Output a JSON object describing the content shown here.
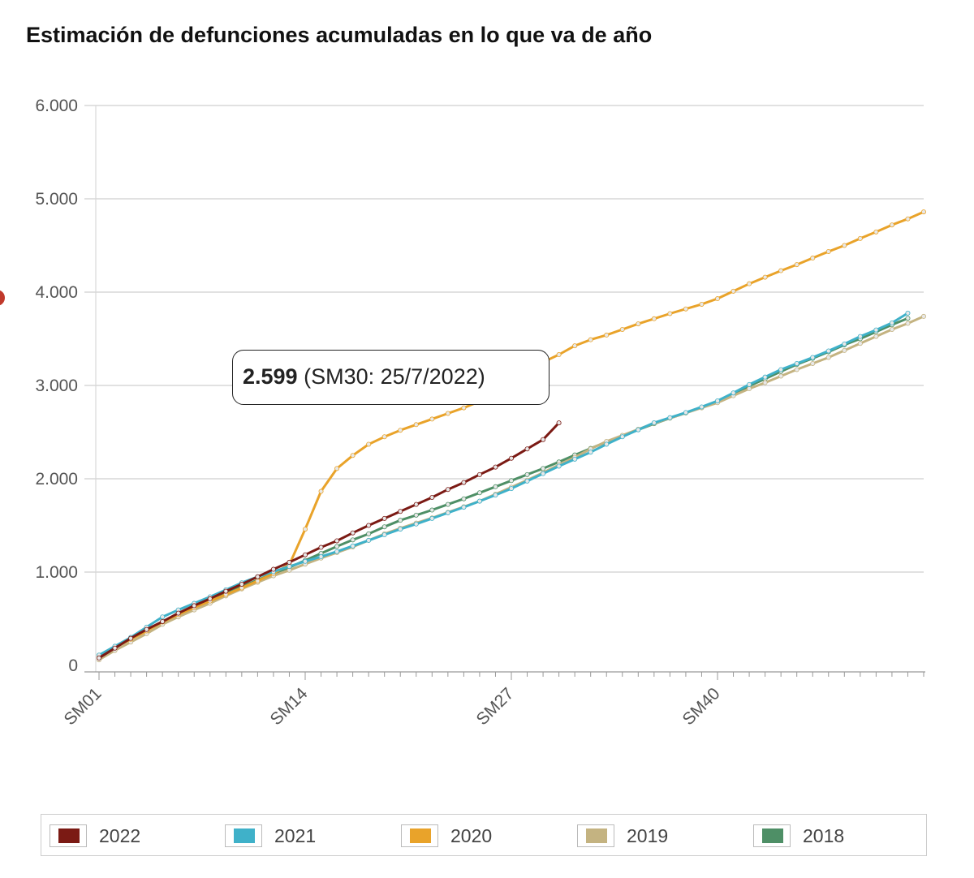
{
  "title": "Estimación de defunciones acumuladas en lo que va de año",
  "tooltip": {
    "value": "2.599",
    "detail": " (SM30: 25/7/2022)"
  },
  "legend": [
    {
      "label": "2022",
      "color": "#7b1a14"
    },
    {
      "label": "2021",
      "color": "#3fb1c9"
    },
    {
      "label": "2020",
      "color": "#e9a32a"
    },
    {
      "label": "2019",
      "color": "#c4b381"
    },
    {
      "label": "2018",
      "color": "#4e8f66"
    }
  ],
  "chart_data": {
    "type": "line",
    "title": "Estimación de defunciones acumuladas en lo que va de año",
    "x_tick_labels": [
      "SM01",
      "SM14",
      "SM27",
      "SM40"
    ],
    "x_tick_indices": [
      0,
      13,
      26,
      39
    ],
    "n_weeks": 53,
    "ylim": [
      0,
      6000
    ],
    "y_ticks": [
      0,
      1000,
      2000,
      3000,
      4000,
      5000,
      6000
    ],
    "y_tick_labels": [
      "0",
      "1.000",
      "2.000",
      "3.000",
      "4.000",
      "5.000",
      "6.000"
    ],
    "grid": true,
    "legend_position": "bottom",
    "series": [
      {
        "name": "2022",
        "color": "#7b1a14",
        "values": [
          80,
          185,
          290,
          385,
          470,
          560,
          640,
          715,
          795,
          870,
          950,
          1030,
          1105,
          1185,
          1265,
          1335,
          1420,
          1500,
          1575,
          1650,
          1725,
          1800,
          1885,
          1960,
          2045,
          2125,
          2220,
          2320,
          2420,
          2599
        ]
      },
      {
        "name": "2021",
        "color": "#3fb1c9",
        "values": [
          110,
          205,
          300,
          410,
          520,
          595,
          665,
          735,
          810,
          885,
          950,
          1005,
          1060,
          1115,
          1165,
          1220,
          1280,
          1340,
          1400,
          1460,
          1515,
          1575,
          1635,
          1695,
          1760,
          1825,
          1895,
          1975,
          2055,
          2135,
          2210,
          2285,
          2370,
          2450,
          2525,
          2600,
          2655,
          2710,
          2770,
          2835,
          2920,
          3010,
          3090,
          3170,
          3235,
          3300,
          3370,
          3445,
          3525,
          3595,
          3670,
          3775
        ]
      },
      {
        "name": "2020",
        "color": "#e9a32a",
        "values": [
          100,
          190,
          280,
          370,
          465,
          545,
          620,
          690,
          760,
          830,
          905,
          985,
          1080,
          1460,
          1865,
          2110,
          2250,
          2370,
          2450,
          2520,
          2580,
          2640,
          2700,
          2760,
          2830,
          2920,
          3030,
          3150,
          3250,
          3330,
          3425,
          3490,
          3540,
          3600,
          3660,
          3715,
          3770,
          3820,
          3870,
          3930,
          4010,
          4090,
          4160,
          4230,
          4295,
          4365,
          4435,
          4500,
          4575,
          4645,
          4720,
          4785,
          4860
        ]
      },
      {
        "name": "2019",
        "color": "#c4b381",
        "values": [
          60,
          160,
          250,
          340,
          440,
          520,
          595,
          665,
          745,
          820,
          890,
          960,
          1020,
          1085,
          1150,
          1210,
          1270,
          1340,
          1410,
          1470,
          1525,
          1580,
          1640,
          1700,
          1760,
          1835,
          1910,
          1985,
          2065,
          2150,
          2230,
          2320,
          2400,
          2465,
          2530,
          2595,
          2650,
          2705,
          2760,
          2815,
          2890,
          2965,
          3030,
          3100,
          3170,
          3235,
          3300,
          3375,
          3450,
          3525,
          3600,
          3665,
          3740
        ]
      },
      {
        "name": "2018",
        "color": "#4e8f66",
        "values": [
          110,
          200,
          290,
          380,
          470,
          550,
          625,
          700,
          775,
          845,
          915,
          985,
          1050,
          1125,
          1200,
          1275,
          1345,
          1410,
          1485,
          1555,
          1610,
          1665,
          1725,
          1785,
          1850,
          1915,
          1980,
          2045,
          2110,
          2180,
          2255,
          2325,
          2395,
          2460,
          2525,
          2590,
          2650,
          2705,
          2765,
          2825,
          2910,
          2995,
          3070,
          3150,
          3225,
          3290,
          3360,
          3435,
          3500,
          3575,
          3650,
          3720
        ]
      }
    ]
  }
}
